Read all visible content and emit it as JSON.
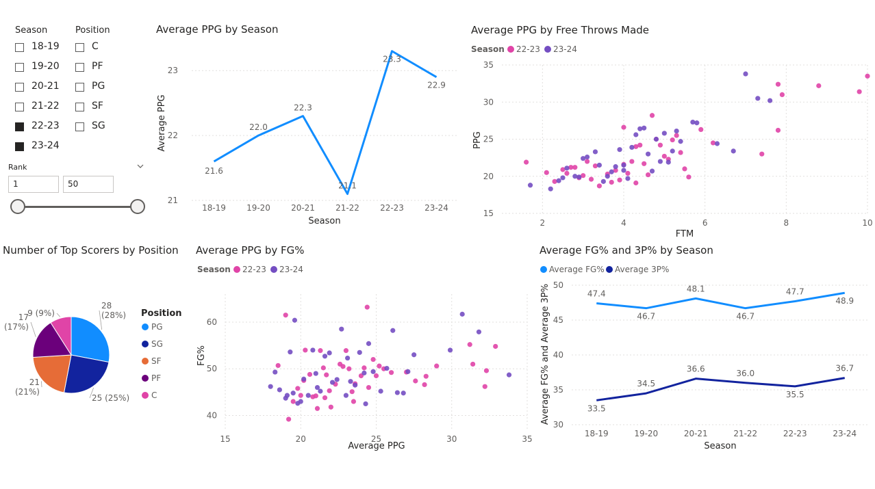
{
  "slicers": {
    "season": {
      "title": "Season",
      "items": [
        {
          "label": "18-19",
          "checked": false
        },
        {
          "label": "19-20",
          "checked": false
        },
        {
          "label": "20-21",
          "checked": false
        },
        {
          "label": "21-22",
          "checked": false
        },
        {
          "label": "22-23",
          "checked": true
        },
        {
          "label": "23-24",
          "checked": true
        }
      ]
    },
    "position": {
      "title": "Position",
      "items": [
        {
          "label": "C",
          "checked": false
        },
        {
          "label": "PF",
          "checked": false
        },
        {
          "label": "PG",
          "checked": false
        },
        {
          "label": "SF",
          "checked": false
        },
        {
          "label": "SG",
          "checked": false
        }
      ]
    },
    "rank": {
      "title": "Rank",
      "min": "1",
      "max": "50",
      "range_min": 1,
      "range_max": 50
    }
  },
  "colors": {
    "blue": "#118DFF",
    "navy": "#12239E",
    "orange": "#E66C37",
    "purple": "#6B007B",
    "pink": "#E044A7",
    "magenta_22_23": "#E044A7",
    "violet_23_24": "#744EC2"
  },
  "chart_data": [
    {
      "id": "ppg_by_season",
      "type": "line",
      "title": "Average PPG by Season",
      "xlabel": "Season",
      "ylabel": "Average PPG",
      "categories": [
        "18-19",
        "19-20",
        "20-21",
        "21-22",
        "22-23",
        "23-24"
      ],
      "values": [
        21.6,
        22.0,
        22.3,
        21.1,
        23.3,
        22.9
      ],
      "data_labels": [
        "21.6",
        "22.0",
        "22.3",
        "21.1",
        "23.3",
        "22.9"
      ],
      "ylim": [
        21,
        23.35
      ],
      "yticks": [
        "21",
        "22",
        "23"
      ],
      "grid": true
    },
    {
      "id": "ppg_by_ftm",
      "type": "scatter",
      "title": "Average PPG by Free Throws Made",
      "xlabel": "FTM",
      "ylabel": "PPG",
      "legend_title": "Season",
      "legend_placement": "top-left",
      "xlim": [
        1,
        10
      ],
      "ylim": [
        15,
        35
      ],
      "xticks": [
        "2",
        "4",
        "6",
        "8",
        "10"
      ],
      "yticks": [
        "15",
        "20",
        "25",
        "30",
        "35"
      ],
      "series": [
        {
          "name": "22-23",
          "points": [
            [
              1.6,
              21.9
            ],
            [
              2.1,
              20.5
            ],
            [
              2.3,
              19.3
            ],
            [
              2.5,
              20.9
            ],
            [
              2.6,
              20.4
            ],
            [
              2.7,
              21.2
            ],
            [
              2.8,
              21.2
            ],
            [
              2.9,
              19.8
            ],
            [
              3.0,
              20.1
            ],
            [
              3.1,
              22.0
            ],
            [
              3.2,
              19.6
            ],
            [
              3.3,
              21.4
            ],
            [
              3.4,
              18.7
            ],
            [
              3.6,
              20.3
            ],
            [
              3.7,
              19.2
            ],
            [
              3.8,
              20.8
            ],
            [
              3.9,
              19.5
            ],
            [
              4.0,
              21.6
            ],
            [
              4.1,
              20.4
            ],
            [
              4.2,
              22.0
            ],
            [
              4.3,
              19.1
            ],
            [
              4.4,
              24.2
            ],
            [
              4.5,
              21.7
            ],
            [
              4.6,
              20.2
            ],
            [
              4.7,
              28.2
            ],
            [
              4.8,
              25.0
            ],
            [
              4.9,
              24.2
            ],
            [
              5.0,
              22.7
            ],
            [
              5.1,
              22.3
            ],
            [
              5.2,
              24.9
            ],
            [
              5.3,
              25.5
            ],
            [
              5.4,
              23.2
            ],
            [
              5.5,
              21.0
            ],
            [
              5.6,
              19.9
            ],
            [
              4.0,
              26.6
            ],
            [
              4.3,
              24.0
            ],
            [
              5.9,
              26.3
            ],
            [
              6.2,
              24.5
            ],
            [
              7.4,
              23.0
            ],
            [
              7.8,
              26.2
            ],
            [
              7.8,
              32.4
            ],
            [
              7.9,
              31.0
            ],
            [
              8.8,
              32.2
            ],
            [
              9.8,
              31.4
            ],
            [
              10.0,
              33.5
            ]
          ]
        },
        {
          "name": "23-24",
          "points": [
            [
              1.7,
              18.8
            ],
            [
              2.2,
              18.3
            ],
            [
              2.4,
              19.4
            ],
            [
              2.5,
              19.8
            ],
            [
              2.6,
              21.1
            ],
            [
              2.8,
              20.0
            ],
            [
              2.9,
              19.9
            ],
            [
              3.0,
              22.4
            ],
            [
              3.1,
              22.6
            ],
            [
              3.3,
              23.3
            ],
            [
              3.4,
              21.5
            ],
            [
              3.5,
              19.3
            ],
            [
              3.6,
              20.0
            ],
            [
              3.7,
              20.6
            ],
            [
              3.8,
              21.3
            ],
            [
              3.9,
              23.6
            ],
            [
              4.0,
              20.8
            ],
            [
              4.0,
              21.5
            ],
            [
              4.1,
              19.7
            ],
            [
              4.2,
              23.9
            ],
            [
              4.3,
              25.6
            ],
            [
              4.4,
              26.4
            ],
            [
              4.5,
              26.5
            ],
            [
              4.6,
              23.0
            ],
            [
              4.7,
              20.7
            ],
            [
              4.8,
              25.0
            ],
            [
              4.9,
              22.0
            ],
            [
              5.0,
              25.8
            ],
            [
              5.1,
              21.9
            ],
            [
              5.2,
              23.4
            ],
            [
              5.3,
              26.1
            ],
            [
              5.4,
              24.7
            ],
            [
              5.7,
              27.3
            ],
            [
              5.8,
              27.2
            ],
            [
              6.3,
              24.4
            ],
            [
              6.7,
              23.4
            ],
            [
              7.0,
              33.8
            ],
            [
              7.3,
              30.5
            ],
            [
              7.6,
              30.2
            ]
          ]
        }
      ]
    },
    {
      "id": "top_scorers_by_position",
      "type": "pie",
      "title": "Number of Top Scorers by Position",
      "legend_title": "Position",
      "legend_placement": "right",
      "categories": [
        "PG",
        "SG",
        "SF",
        "PF",
        "C"
      ],
      "values": [
        28,
        25,
        21,
        17,
        9
      ],
      "data_labels": [
        "28\n(28%)",
        "25 (25%)",
        "21\n(21%)",
        "17\n(17%)",
        "9 (9%)"
      ]
    },
    {
      "id": "ppg_by_fg",
      "type": "scatter",
      "title": "Average PPG by FG%",
      "xlabel": "Average PPG",
      "ylabel": "FG%",
      "legend_title": "Season",
      "legend_placement": "top-left",
      "xlim": [
        15,
        35
      ],
      "ylim": [
        37,
        66
      ],
      "xticks": [
        "15",
        "20",
        "25",
        "30",
        "35"
      ],
      "yticks": [
        "40",
        "50",
        "60"
      ],
      "series": [
        {
          "name": "22-23",
          "points": [
            [
              19.0,
              61.5
            ],
            [
              19.2,
              39.2
            ],
            [
              18.5,
              50.7
            ],
            [
              19.5,
              43.0
            ],
            [
              19.8,
              45.8
            ],
            [
              20.0,
              44.3
            ],
            [
              20.2,
              47.5
            ],
            [
              20.3,
              54.0
            ],
            [
              20.6,
              48.8
            ],
            [
              20.8,
              44.0
            ],
            [
              21.0,
              44.2
            ],
            [
              21.1,
              41.5
            ],
            [
              21.3,
              53.9
            ],
            [
              21.5,
              50.2
            ],
            [
              21.6,
              43.8
            ],
            [
              21.7,
              48.7
            ],
            [
              21.9,
              45.3
            ],
            [
              22.0,
              41.8
            ],
            [
              22.3,
              46.7
            ],
            [
              22.6,
              51.0
            ],
            [
              22.8,
              50.5
            ],
            [
              23.0,
              53.9
            ],
            [
              23.2,
              50.0
            ],
            [
              23.4,
              45.1
            ],
            [
              23.5,
              43.0
            ],
            [
              23.6,
              46.8
            ],
            [
              24.0,
              48.5
            ],
            [
              24.2,
              50.2
            ],
            [
              24.4,
              63.2
            ],
            [
              24.5,
              46.0
            ],
            [
              24.8,
              52.0
            ],
            [
              25.0,
              48.5
            ],
            [
              25.2,
              50.6
            ],
            [
              25.5,
              50.0
            ],
            [
              26.0,
              49.2
            ],
            [
              27.0,
              49.3
            ],
            [
              27.6,
              47.4
            ],
            [
              28.2,
              46.6
            ],
            [
              28.3,
              48.4
            ],
            [
              29.0,
              50.6
            ],
            [
              31.2,
              55.2
            ],
            [
              31.4,
              51.0
            ],
            [
              32.2,
              46.2
            ],
            [
              32.3,
              49.6
            ],
            [
              32.9,
              54.8
            ]
          ]
        },
        {
          "name": "23-24",
          "points": [
            [
              18.0,
              46.2
            ],
            [
              18.3,
              49.3
            ],
            [
              18.6,
              45.5
            ],
            [
              19.0,
              43.7
            ],
            [
              19.1,
              44.3
            ],
            [
              19.3,
              53.6
            ],
            [
              19.5,
              44.8
            ],
            [
              19.6,
              60.4
            ],
            [
              19.8,
              42.6
            ],
            [
              20.0,
              43.0
            ],
            [
              20.2,
              47.8
            ],
            [
              20.5,
              44.3
            ],
            [
              20.8,
              54.0
            ],
            [
              21.0,
              49.0
            ],
            [
              21.1,
              46.0
            ],
            [
              21.3,
              45.2
            ],
            [
              21.6,
              52.7
            ],
            [
              21.9,
              53.4
            ],
            [
              22.1,
              47.1
            ],
            [
              22.4,
              47.7
            ],
            [
              22.7,
              58.5
            ],
            [
              23.0,
              44.3
            ],
            [
              23.1,
              52.3
            ],
            [
              23.3,
              47.3
            ],
            [
              23.6,
              46.5
            ],
            [
              23.9,
              53.5
            ],
            [
              24.2,
              49.1
            ],
            [
              24.3,
              42.5
            ],
            [
              24.5,
              55.4
            ],
            [
              24.8,
              49.4
            ],
            [
              25.3,
              45.2
            ],
            [
              25.7,
              50.1
            ],
            [
              26.1,
              58.2
            ],
            [
              26.4,
              44.9
            ],
            [
              26.8,
              44.8
            ],
            [
              27.1,
              49.4
            ],
            [
              27.5,
              53.0
            ],
            [
              29.9,
              54.0
            ],
            [
              30.7,
              61.7
            ],
            [
              31.8,
              57.9
            ],
            [
              33.8,
              48.7
            ]
          ]
        }
      ]
    },
    {
      "id": "fg_3p_by_season",
      "type": "line",
      "title": "Average FG% and 3P% by Season",
      "xlabel": "Season",
      "ylabel": "Average FG% and Average 3P%",
      "legend_placement": "top-left",
      "categories": [
        "18-19",
        "19-20",
        "20-21",
        "21-22",
        "22-23",
        "23-24"
      ],
      "ylim": [
        30,
        50
      ],
      "yticks": [
        "30",
        "35",
        "40",
        "45",
        "50"
      ],
      "series": [
        {
          "name": "Average FG%",
          "values": [
            47.4,
            46.7,
            48.1,
            46.7,
            47.7,
            48.9
          ],
          "data_labels": [
            "47.4",
            "46.7",
            "48.1",
            "46.7",
            "47.7",
            "48.9"
          ]
        },
        {
          "name": "Average 3P%",
          "values": [
            33.5,
            34.5,
            36.6,
            36.0,
            35.5,
            36.7
          ],
          "data_labels": [
            "33.5",
            "34.5",
            "36.6",
            "36.0",
            "35.5",
            "36.7"
          ]
        }
      ]
    }
  ]
}
